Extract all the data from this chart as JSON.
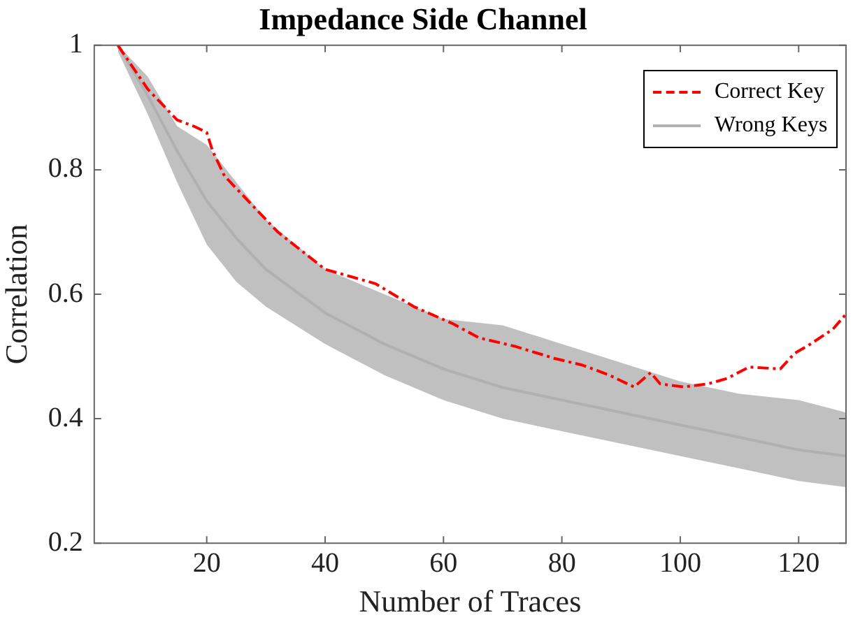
{
  "chart_data": {
    "type": "line",
    "title": "Impedance Side Channel",
    "xlabel": "Number of Traces",
    "ylabel": "Correlation",
    "xlim": [
      1,
      128
    ],
    "xticks": [
      20,
      40,
      60,
      80,
      100,
      120
    ],
    "ylim": [
      0.2,
      1
    ],
    "yticks": [
      0.2,
      0.4,
      0.6,
      0.8,
      1
    ],
    "grid": false,
    "legend": "top right",
    "marker": "none",
    "series": [
      {
        "name": "Correct Key",
        "color": "#ff0000",
        "line_style": "dashed",
        "x": [
          5,
          10,
          15,
          17.8,
          20,
          21,
          23,
          28,
          32,
          40,
          48.5,
          55,
          61.5,
          66,
          72.2,
          78.7,
          83.5,
          88,
          92.2,
          95,
          96.6,
          100.6,
          104.7,
          108,
          111.6,
          116.9,
          119.3,
          122,
          125.8,
          127.9
        ],
        "values": [
          1.0,
          0.93,
          0.88,
          0.87,
          0.86,
          0.83,
          0.79,
          0.74,
          0.7,
          0.64,
          0.617,
          0.58,
          0.553,
          0.53,
          0.516,
          0.497,
          0.486,
          0.47,
          0.451,
          0.474,
          0.456,
          0.451,
          0.456,
          0.465,
          0.483,
          0.48,
          0.505,
          0.52,
          0.544,
          0.567
        ]
      },
      {
        "name": "Wrong Keys",
        "color": "#b0b0b0",
        "line_style": "solid",
        "x": [
          5,
          10,
          15,
          20,
          25,
          30,
          40,
          50,
          60,
          70,
          80,
          90,
          100,
          110,
          120,
          128
        ],
        "values": [
          1.0,
          0.92,
          0.83,
          0.75,
          0.69,
          0.64,
          0.57,
          0.52,
          0.48,
          0.45,
          0.43,
          0.41,
          0.39,
          0.37,
          0.35,
          0.34
        ],
        "lower": [
          0.99,
          0.89,
          0.78,
          0.68,
          0.62,
          0.58,
          0.52,
          0.47,
          0.43,
          0.4,
          0.38,
          0.36,
          0.34,
          0.32,
          0.3,
          0.29
        ],
        "upper": [
          1.0,
          0.95,
          0.87,
          0.84,
          0.78,
          0.72,
          0.64,
          0.6,
          0.56,
          0.55,
          0.52,
          0.49,
          0.46,
          0.44,
          0.43,
          0.41
        ]
      }
    ]
  }
}
